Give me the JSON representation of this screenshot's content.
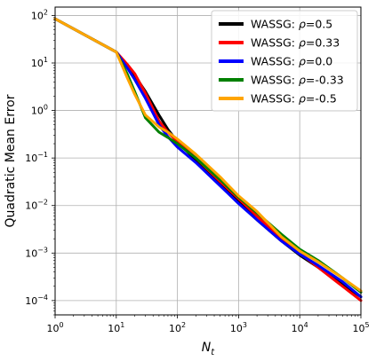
{
  "chart_data": {
    "type": "line",
    "xlabel": "N",
    "xlabel_sub": "t",
    "ylabel": "Quadratic Mean Error",
    "xscale": "log",
    "yscale": "log",
    "xlim": [
      1,
      100000
    ],
    "ylim": [
      5e-05,
      150
    ],
    "grid": true,
    "legend_position": "top-right",
    "x_ticks": [
      {
        "value": 1,
        "base": "10",
        "exp": "0"
      },
      {
        "value": 10,
        "base": "10",
        "exp": "1"
      },
      {
        "value": 100,
        "base": "10",
        "exp": "2"
      },
      {
        "value": 1000,
        "base": "10",
        "exp": "3"
      },
      {
        "value": 10000,
        "base": "10",
        "exp": "4"
      },
      {
        "value": 100000,
        "base": "10",
        "exp": "5"
      }
    ],
    "y_ticks": [
      {
        "value": 100,
        "base": "10",
        "exp": "2"
      },
      {
        "value": 10,
        "base": "10",
        "exp": "1"
      },
      {
        "value": 1,
        "base": "10",
        "exp": "0"
      },
      {
        "value": 0.1,
        "base": "10",
        "exp": "−1"
      },
      {
        "value": 0.01,
        "base": "10",
        "exp": "−2"
      },
      {
        "value": 0.001,
        "base": "10",
        "exp": "−3"
      },
      {
        "value": 0.0001,
        "base": "10",
        "exp": "−4"
      }
    ],
    "series": [
      {
        "name": "WASSG: ρ=0.5",
        "name_prefix": "WASSG: ",
        "name_symbol": "ρ",
        "name_suffix": "=0.5",
        "color": "#000000",
        "x": [
          1,
          10,
          15,
          20,
          30,
          50,
          70,
          100,
          200,
          500,
          1000,
          2000,
          5000,
          10000,
          20000,
          50000,
          100000
        ],
        "y": [
          85,
          17,
          9,
          5.5,
          2.5,
          0.8,
          0.4,
          0.22,
          0.09,
          0.028,
          0.012,
          0.005,
          0.0018,
          0.0009,
          0.0005,
          0.00022,
          0.00012
        ]
      },
      {
        "name": "WASSG: ρ=0.33",
        "name_prefix": "WASSG: ",
        "name_symbol": "ρ",
        "name_suffix": "=0.33",
        "color": "#ff0000",
        "x": [
          1,
          10,
          15,
          20,
          30,
          50,
          70,
          100,
          200,
          500,
          1000,
          2000,
          5000,
          10000,
          20000,
          50000,
          100000
        ],
        "y": [
          85,
          17,
          9.5,
          6,
          2.3,
          0.6,
          0.35,
          0.22,
          0.1,
          0.032,
          0.014,
          0.006,
          0.002,
          0.001,
          0.0005,
          0.0002,
          0.0001
        ]
      },
      {
        "name": "WASSG: ρ=0.0",
        "name_prefix": "WASSG: ",
        "name_symbol": "ρ",
        "name_suffix": "=0.0",
        "color": "#0000ff",
        "x": [
          1,
          10,
          15,
          20,
          30,
          50,
          70,
          100,
          200,
          500,
          1000,
          2000,
          5000,
          10000,
          20000,
          50000,
          100000
        ],
        "y": [
          85,
          17,
          8,
          4.5,
          1.8,
          0.5,
          0.28,
          0.17,
          0.08,
          0.026,
          0.011,
          0.005,
          0.0018,
          0.00095,
          0.00055,
          0.00025,
          0.00012
        ]
      },
      {
        "name": "WASSG: ρ=-0.33",
        "name_prefix": "WASSG: ",
        "name_symbol": "ρ",
        "name_suffix": "=-0.33",
        "color": "#008000",
        "x": [
          1,
          10,
          15,
          20,
          30,
          50,
          70,
          100,
          200,
          500,
          1000,
          2000,
          5000,
          10000,
          20000,
          50000,
          100000
        ],
        "y": [
          85,
          17,
          6,
          2.5,
          0.7,
          0.35,
          0.27,
          0.2,
          0.1,
          0.035,
          0.015,
          0.007,
          0.0025,
          0.0012,
          0.0007,
          0.0003,
          0.00015
        ]
      },
      {
        "name": "WASSG: ρ=-0.5",
        "name_prefix": "WASSG: ",
        "name_symbol": "ρ",
        "name_suffix": "=-0.5",
        "color": "#ffa500",
        "x": [
          1,
          10,
          15,
          20,
          30,
          50,
          70,
          100,
          200,
          500,
          1000,
          2000,
          5000,
          10000,
          20000,
          50000,
          100000
        ],
        "y": [
          85,
          17,
          5,
          2.2,
          0.8,
          0.45,
          0.35,
          0.25,
          0.12,
          0.04,
          0.016,
          0.0075,
          0.0022,
          0.0011,
          0.00065,
          0.0003,
          0.00016
        ]
      }
    ]
  }
}
